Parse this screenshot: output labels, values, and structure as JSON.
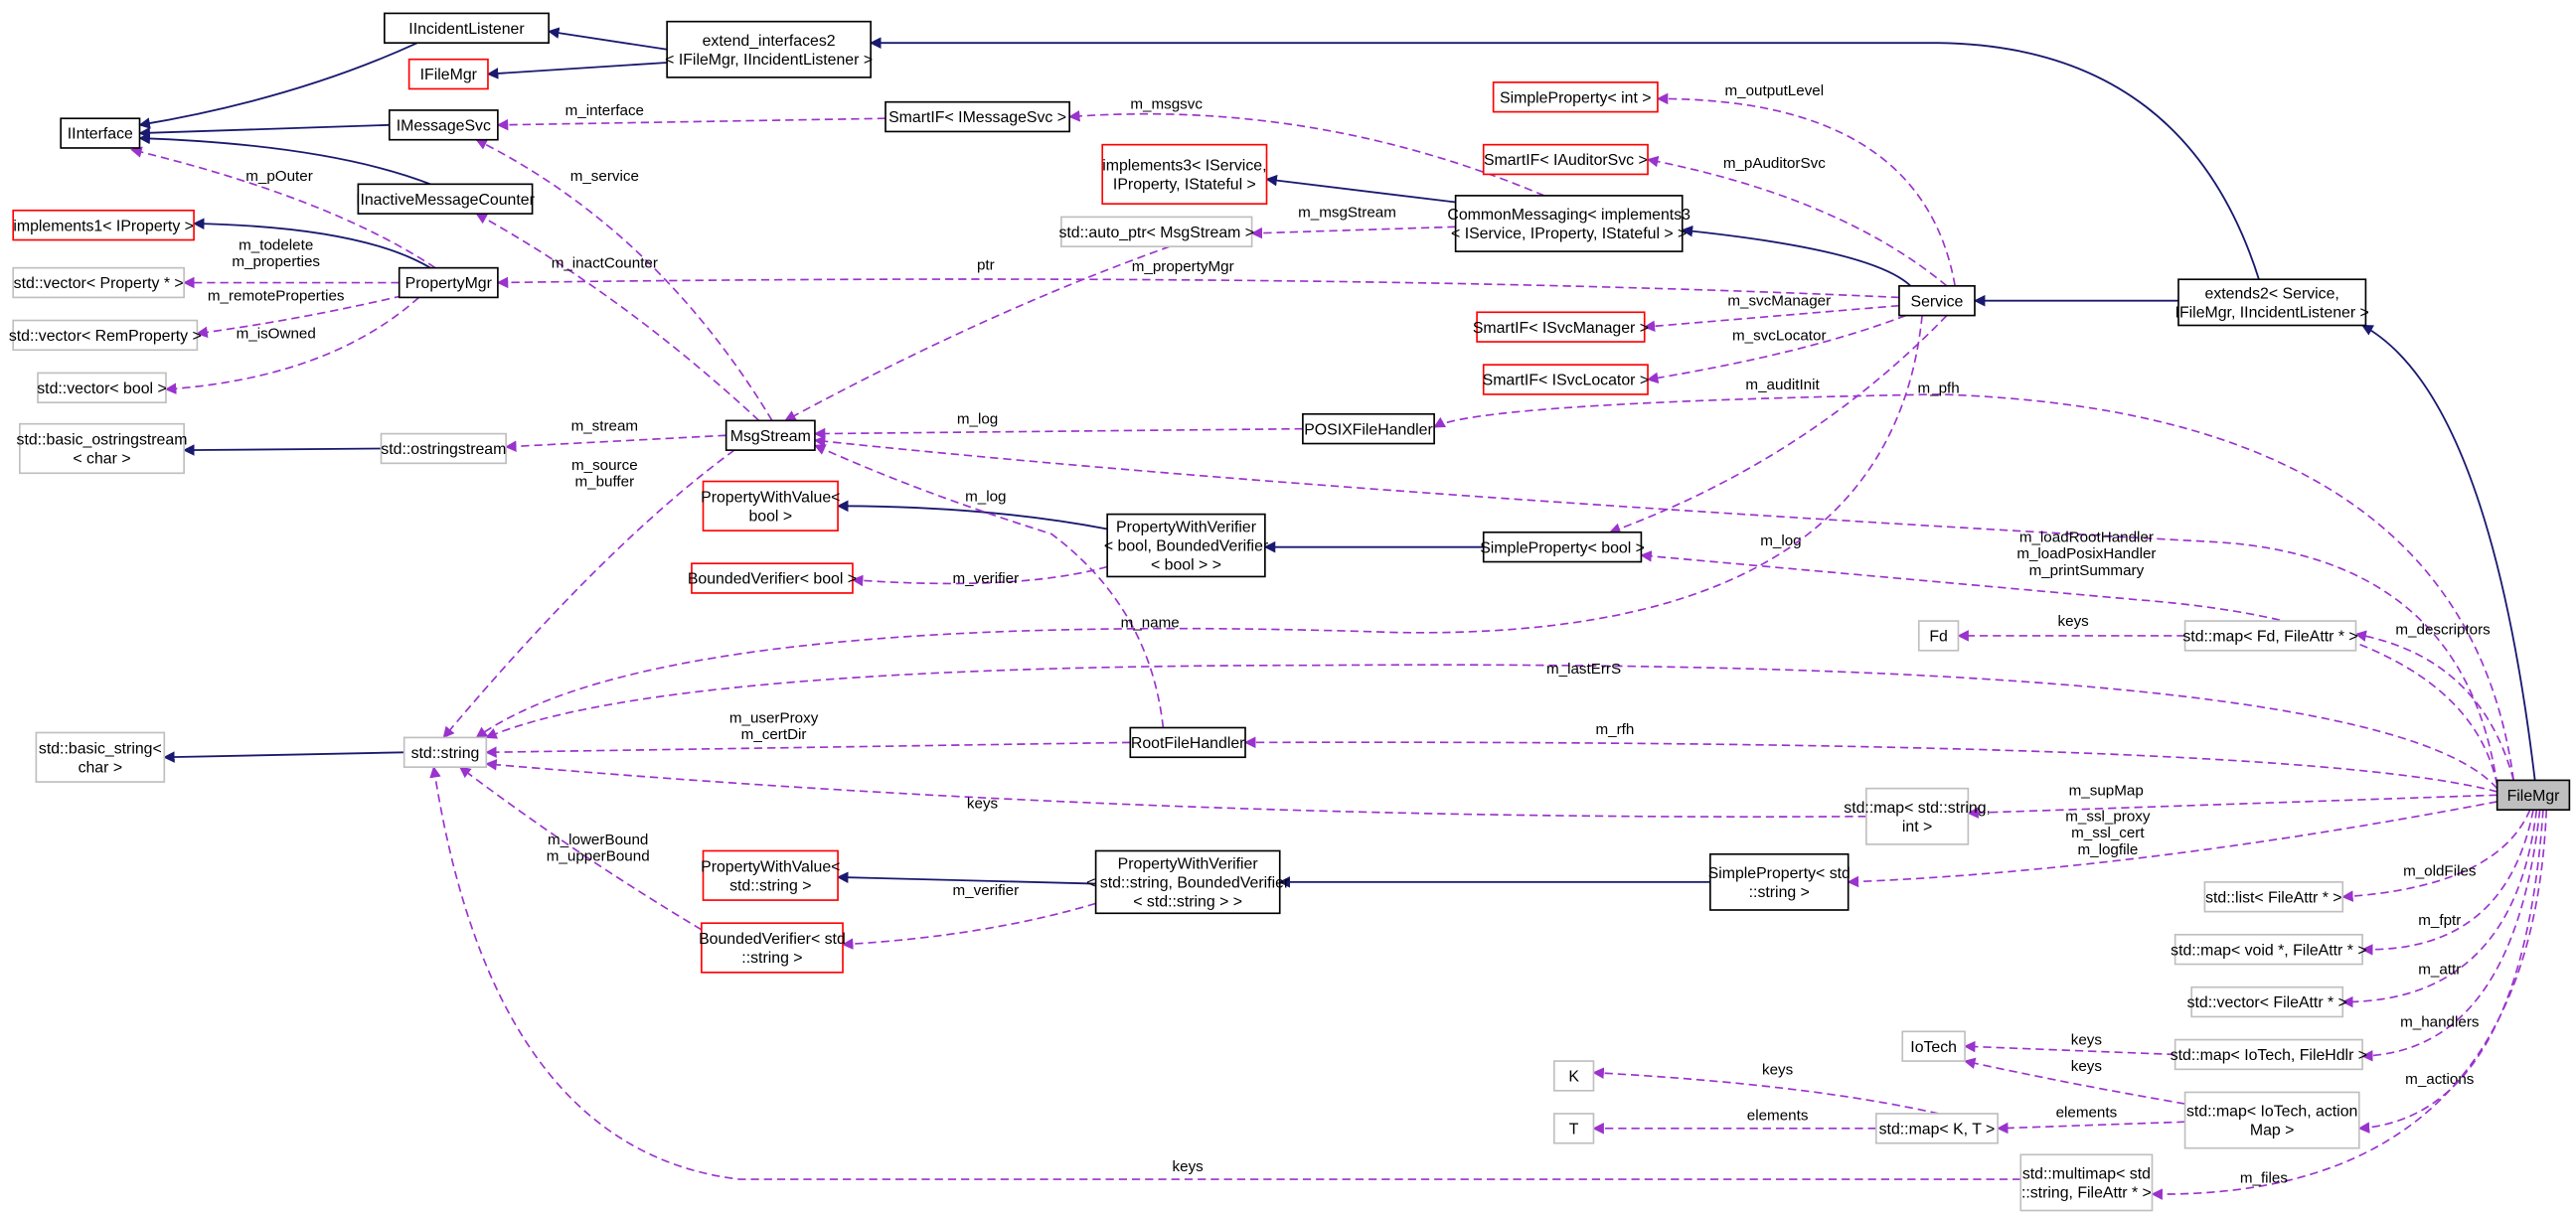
{
  "colors": {
    "inherit": "#191970",
    "usage": "#9a32cd",
    "documented": "#000000",
    "undocumented": "#ff0000",
    "external": "#bfbfbf",
    "focus_fill": "#bfbfbf"
  },
  "nodes": [
    {
      "id": "IIncidentListener",
      "lines": [
        "IIncidentListener"
      ],
      "style": "documented"
    },
    {
      "id": "extend_interfaces2",
      "lines": [
        "extend_interfaces2",
        "< IFileMgr, IIncidentListener >"
      ],
      "style": "documented"
    },
    {
      "id": "IFileMgr",
      "lines": [
        "IFileMgr"
      ],
      "style": "undocumented"
    },
    {
      "id": "IInterface",
      "lines": [
        "IInterface"
      ],
      "style": "documented"
    },
    {
      "id": "IMessageSvc",
      "lines": [
        "IMessageSvc"
      ],
      "style": "documented"
    },
    {
      "id": "SmartIF_IMessageSvc",
      "lines": [
        "SmartIF< IMessageSvc >"
      ],
      "style": "documented"
    },
    {
      "id": "implements3",
      "lines": [
        "implements3< IService,",
        "IProperty, IStateful >"
      ],
      "style": "undocumented"
    },
    {
      "id": "SimpleProperty_int",
      "lines": [
        "SimpleProperty< int >"
      ],
      "style": "undocumented"
    },
    {
      "id": "SmartIF_IAuditorSvc",
      "lines": [
        "SmartIF< IAuditorSvc >"
      ],
      "style": "undocumented"
    },
    {
      "id": "IInactiveMessageCounter",
      "lines": [
        "IInactiveMessageCounter"
      ],
      "style": "documented"
    },
    {
      "id": "implements1",
      "lines": [
        "implements1< IProperty >"
      ],
      "style": "undocumented"
    },
    {
      "id": "PropertyMgr",
      "lines": [
        "PropertyMgr"
      ],
      "style": "documented"
    },
    {
      "id": "vector_Property",
      "lines": [
        "std::vector< Property * >"
      ],
      "style": "external"
    },
    {
      "id": "auto_ptr",
      "lines": [
        "std::auto_ptr< MsgStream >"
      ],
      "style": "external"
    },
    {
      "id": "CommonMessaging",
      "lines": [
        "CommonMessaging< implements3",
        "< IService, IProperty, IStateful > >"
      ],
      "style": "documented"
    },
    {
      "id": "Service",
      "lines": [
        "Service"
      ],
      "style": "documented"
    },
    {
      "id": "extends2",
      "lines": [
        "extends2< Service,",
        "IFileMgr, IIncidentListener >"
      ],
      "style": "documented"
    },
    {
      "id": "vector_RemProperty",
      "lines": [
        "std::vector< RemProperty >"
      ],
      "style": "external"
    },
    {
      "id": "vector_bool",
      "lines": [
        "std::vector< bool >"
      ],
      "style": "external"
    },
    {
      "id": "SmartIF_ISvcManager",
      "lines": [
        "SmartIF< ISvcManager >"
      ],
      "style": "undocumented"
    },
    {
      "id": "SmartIF_ISvcLocator",
      "lines": [
        "SmartIF< ISvcLocator >"
      ],
      "style": "undocumented"
    },
    {
      "id": "basic_ostringstream",
      "lines": [
        "std::basic_ostringstream",
        "< char >"
      ],
      "style": "external"
    },
    {
      "id": "ostringstream",
      "lines": [
        "std::ostringstream"
      ],
      "style": "external"
    },
    {
      "id": "MsgStream",
      "lines": [
        "MsgStream"
      ],
      "style": "documented"
    },
    {
      "id": "POSIXFileHandler",
      "lines": [
        "POSIXFileHandler"
      ],
      "style": "documented"
    },
    {
      "id": "PWV_bool",
      "lines": [
        "PropertyWithValue<",
        "bool >"
      ],
      "style": "undocumented"
    },
    {
      "id": "PWVer_bool",
      "lines": [
        "PropertyWithVerifier",
        "< bool, BoundedVerifier",
        "< bool > >"
      ],
      "style": "documented"
    },
    {
      "id": "SimpleProperty_bool",
      "lines": [
        "SimpleProperty< bool >"
      ],
      "style": "documented"
    },
    {
      "id": "BoundedVerifier_bool",
      "lines": [
        "BoundedVerifier< bool >"
      ],
      "style": "undocumented"
    },
    {
      "id": "Fd",
      "lines": [
        "Fd"
      ],
      "style": "external"
    },
    {
      "id": "map_Fd",
      "lines": [
        "std::map< Fd, FileAttr * >"
      ],
      "style": "external"
    },
    {
      "id": "basic_string",
      "lines": [
        "std::basic_string<",
        "char >"
      ],
      "style": "external"
    },
    {
      "id": "string",
      "lines": [
        "std::string"
      ],
      "style": "external"
    },
    {
      "id": "RootFileHandler",
      "lines": [
        "RootFileHandler"
      ],
      "style": "documented"
    },
    {
      "id": "FileMgr",
      "lines": [
        "FileMgr"
      ],
      "style": "focus"
    },
    {
      "id": "map_string_int",
      "lines": [
        "std::map< std::string,",
        "int >"
      ],
      "style": "external"
    },
    {
      "id": "PWV_string",
      "lines": [
        "PropertyWithValue<",
        "std::string >"
      ],
      "style": "undocumented"
    },
    {
      "id": "PWVer_string",
      "lines": [
        "PropertyWithVerifier",
        "< std::string, BoundedVerifier",
        "< std::string > >"
      ],
      "style": "documented"
    },
    {
      "id": "SimpleProperty_string",
      "lines": [
        "SimpleProperty< std",
        "::string >"
      ],
      "style": "documented"
    },
    {
      "id": "BoundedVerifier_string",
      "lines": [
        "BoundedVerifier< std",
        "::string >"
      ],
      "style": "undocumented"
    },
    {
      "id": "list_FileAttr",
      "lines": [
        "std::list< FileAttr * >"
      ],
      "style": "external"
    },
    {
      "id": "map_void",
      "lines": [
        "std::map< void *, FileAttr * >"
      ],
      "style": "external"
    },
    {
      "id": "vector_FileAttr",
      "lines": [
        "std::vector< FileAttr * >"
      ],
      "style": "external"
    },
    {
      "id": "IoTech",
      "lines": [
        "IoTech"
      ],
      "style": "external"
    },
    {
      "id": "map_IoTech_FileHdlr",
      "lines": [
        "std::map< IoTech, FileHdlr >"
      ],
      "style": "external"
    },
    {
      "id": "K",
      "lines": [
        "K"
      ],
      "style": "external"
    },
    {
      "id": "T",
      "lines": [
        "T"
      ],
      "style": "external"
    },
    {
      "id": "map_K_T",
      "lines": [
        "std::map< K, T >"
      ],
      "style": "external"
    },
    {
      "id": "map_IoTech_action",
      "lines": [
        "std::map< IoTech, action",
        "Map >"
      ],
      "style": "external"
    },
    {
      "id": "multimap",
      "lines": [
        "std::multimap< std",
        "::string, FileAttr * >"
      ],
      "style": "external"
    }
  ],
  "edges": [
    {
      "from": "extend_interfaces2",
      "to": "IIncidentListener",
      "kind": "inherit",
      "labels": []
    },
    {
      "from": "extend_interfaces2",
      "to": "IFileMgr",
      "kind": "inherit",
      "labels": []
    },
    {
      "from": "IIncidentListener",
      "to": "IInterface",
      "kind": "inherit",
      "labels": []
    },
    {
      "from": "IMessageSvc",
      "to": "IInterface",
      "kind": "inherit",
      "labels": []
    },
    {
      "from": "IInactiveMessageCounter",
      "to": "IInterface",
      "kind": "inherit",
      "labels": []
    },
    {
      "from": "PropertyMgr",
      "to": "implements1",
      "kind": "inherit",
      "labels": []
    },
    {
      "from": "CommonMessaging",
      "to": "implements3",
      "kind": "inherit",
      "labels": []
    },
    {
      "from": "Service",
      "to": "CommonMessaging",
      "kind": "inherit",
      "labels": []
    },
    {
      "from": "extends2",
      "to": "Service",
      "kind": "inherit",
      "labels": []
    },
    {
      "from": "FileMgr",
      "to": "extends2",
      "kind": "inherit",
      "labels": []
    },
    {
      "from": "extends2",
      "to": "extend_interfaces2",
      "kind": "inherit",
      "labels": []
    },
    {
      "from": "PWVer_bool",
      "to": "PWV_bool",
      "kind": "inherit",
      "labels": []
    },
    {
      "from": "SimpleProperty_bool",
      "to": "PWVer_bool",
      "kind": "inherit",
      "labels": []
    },
    {
      "from": "ostringstream",
      "to": "basic_ostringstream",
      "kind": "inherit",
      "labels": []
    },
    {
      "from": "string",
      "to": "basic_string",
      "kind": "inherit",
      "labels": []
    },
    {
      "from": "PWVer_string",
      "to": "PWV_string",
      "kind": "inherit",
      "labels": []
    },
    {
      "from": "SimpleProperty_string",
      "to": "PWVer_string",
      "kind": "inherit",
      "labels": []
    },
    {
      "from": "SmartIF_IMessageSvc",
      "to": "IMessageSvc",
      "kind": "usage",
      "labels": [
        "m_interface"
      ]
    },
    {
      "from": "CommonMessaging",
      "to": "SmartIF_IMessageSvc",
      "kind": "usage",
      "labels": [
        "m_msgsvc"
      ]
    },
    {
      "from": "CommonMessaging",
      "to": "auto_ptr",
      "kind": "usage",
      "labels": [
        "m_msgStream"
      ]
    },
    {
      "from": "Service",
      "to": "SimpleProperty_int",
      "kind": "usage",
      "labels": [
        "m_outputLevel"
      ]
    },
    {
      "from": "Service",
      "to": "SmartIF_IAuditorSvc",
      "kind": "usage",
      "labels": [
        "m_pAuditorSvc"
      ]
    },
    {
      "from": "Service",
      "to": "PropertyMgr",
      "kind": "usage",
      "labels": [
        "m_propertyMgr"
      ]
    },
    {
      "from": "Service",
      "to": "SmartIF_ISvcManager",
      "kind": "usage",
      "labels": [
        "m_svcManager"
      ]
    },
    {
      "from": "Service",
      "to": "SmartIF_ISvcLocator",
      "kind": "usage",
      "labels": [
        "m_svcLocator"
      ]
    },
    {
      "from": "PropertyMgr",
      "to": "IInterface",
      "kind": "usage",
      "labels": [
        "m_pOuter"
      ]
    },
    {
      "from": "PropertyMgr",
      "to": "vector_Property",
      "kind": "usage",
      "labels": [
        "m_todelete",
        "m_properties"
      ]
    },
    {
      "from": "PropertyMgr",
      "to": "vector_RemProperty",
      "kind": "usage",
      "labels": [
        "m_remoteProperties"
      ]
    },
    {
      "from": "PropertyMgr",
      "to": "vector_bool",
      "kind": "usage",
      "labels": [
        "m_isOwned"
      ]
    },
    {
      "from": "MsgStream",
      "to": "IMessageSvc",
      "kind": "usage",
      "labels": [
        "m_service"
      ]
    },
    {
      "from": "MsgStream",
      "to": "IInactiveMessageCounter",
      "kind": "usage",
      "labels": [
        "m_inactCounter"
      ]
    },
    {
      "from": "auto_ptr",
      "to": "MsgStream",
      "kind": "usage",
      "labels": [
        "ptr"
      ]
    },
    {
      "from": "MsgStream",
      "to": "ostringstream",
      "kind": "usage",
      "labels": [
        "m_stream"
      ]
    },
    {
      "from": "MsgStream",
      "to": "string",
      "kind": "usage",
      "labels": [
        "m_source",
        "m_buffer"
      ]
    },
    {
      "from": "POSIXFileHandler",
      "to": "MsgStream",
      "kind": "usage",
      "labels": [
        "m_log"
      ]
    },
    {
      "from": "RootFileHandler",
      "to": "MsgStream",
      "kind": "usage",
      "labels": [
        "m_log"
      ]
    },
    {
      "from": "FileMgr",
      "to": "MsgStream",
      "kind": "usage",
      "labels": [
        "m_log"
      ]
    },
    {
      "from": "Service",
      "to": "SimpleProperty_bool",
      "kind": "usage",
      "labels": [
        "m_auditInit"
      ]
    },
    {
      "from": "FileMgr",
      "to": "POSIXFileHandler",
      "kind": "usage",
      "labels": [
        "m_pfh"
      ]
    },
    {
      "from": "FileMgr",
      "to": "SimpleProperty_bool",
      "kind": "usage",
      "labels": [
        "m_loadRootHandler",
        "m_loadPosixHandler",
        "m_printSummary"
      ]
    },
    {
      "from": "PWVer_bool",
      "to": "BoundedVerifier_bool",
      "kind": "usage",
      "labels": [
        "m_verifier"
      ]
    },
    {
      "from": "Service",
      "to": "string",
      "kind": "usage",
      "labels": [
        "m_name"
      ]
    },
    {
      "from": "FileMgr",
      "to": "string",
      "kind": "usage",
      "labels": [
        "m_lastErrS"
      ]
    },
    {
      "from": "RootFileHandler",
      "to": "string",
      "kind": "usage",
      "labels": [
        "m_userProxy",
        "m_certDir"
      ]
    },
    {
      "from": "FileMgr",
      "to": "RootFileHandler",
      "kind": "usage",
      "labels": [
        "m_rfh"
      ]
    },
    {
      "from": "map_Fd",
      "to": "Fd",
      "kind": "usage",
      "labels": [
        "keys"
      ]
    },
    {
      "from": "FileMgr",
      "to": "map_Fd",
      "kind": "usage",
      "labels": [
        "m_descriptors"
      ]
    },
    {
      "from": "FileMgr",
      "to": "map_string_int",
      "kind": "usage",
      "labels": [
        "m_supMap"
      ]
    },
    {
      "from": "map_string_int",
      "to": "string",
      "kind": "usage",
      "labels": [
        "keys"
      ]
    },
    {
      "from": "FileMgr",
      "to": "SimpleProperty_string",
      "kind": "usage",
      "labels": [
        "m_ssl_proxy",
        "m_ssl_cert",
        "m_logfile"
      ]
    },
    {
      "from": "BoundedVerifier_string",
      "to": "string",
      "kind": "usage",
      "labels": [
        "m_lowerBound",
        "m_upperBound"
      ]
    },
    {
      "from": "PWVer_string",
      "to": "BoundedVerifier_string",
      "kind": "usage",
      "labels": [
        "m_verifier"
      ]
    },
    {
      "from": "FileMgr",
      "to": "list_FileAttr",
      "kind": "usage",
      "labels": [
        "m_oldFiles"
      ]
    },
    {
      "from": "FileMgr",
      "to": "map_void",
      "kind": "usage",
      "labels": [
        "m_fptr"
      ]
    },
    {
      "from": "FileMgr",
      "to": "vector_FileAttr",
      "kind": "usage",
      "labels": [
        "m_attr"
      ]
    },
    {
      "from": "FileMgr",
      "to": "map_IoTech_FileHdlr",
      "kind": "usage",
      "labels": [
        "m_handlers"
      ]
    },
    {
      "from": "FileMgr",
      "to": "map_IoTech_action",
      "kind": "usage",
      "labels": [
        "m_actions"
      ]
    },
    {
      "from": "FileMgr",
      "to": "multimap",
      "kind": "usage",
      "labels": [
        "m_files"
      ]
    },
    {
      "from": "map_IoTech_FileHdlr",
      "to": "IoTech",
      "kind": "usage",
      "labels": [
        "keys"
      ]
    },
    {
      "from": "map_IoTech_action",
      "to": "IoTech",
      "kind": "usage",
      "labels": [
        "keys"
      ]
    },
    {
      "from": "map_K_T",
      "to": "K",
      "kind": "usage",
      "labels": [
        "keys"
      ]
    },
    {
      "from": "map_K_T",
      "to": "T",
      "kind": "usage",
      "labels": [
        "elements"
      ]
    },
    {
      "from": "map_IoTech_action",
      "to": "map_K_T",
      "kind": "usage",
      "labels": [
        "elements"
      ]
    },
    {
      "from": "multimap",
      "to": "string",
      "kind": "usage",
      "labels": [
        "keys"
      ]
    }
  ]
}
